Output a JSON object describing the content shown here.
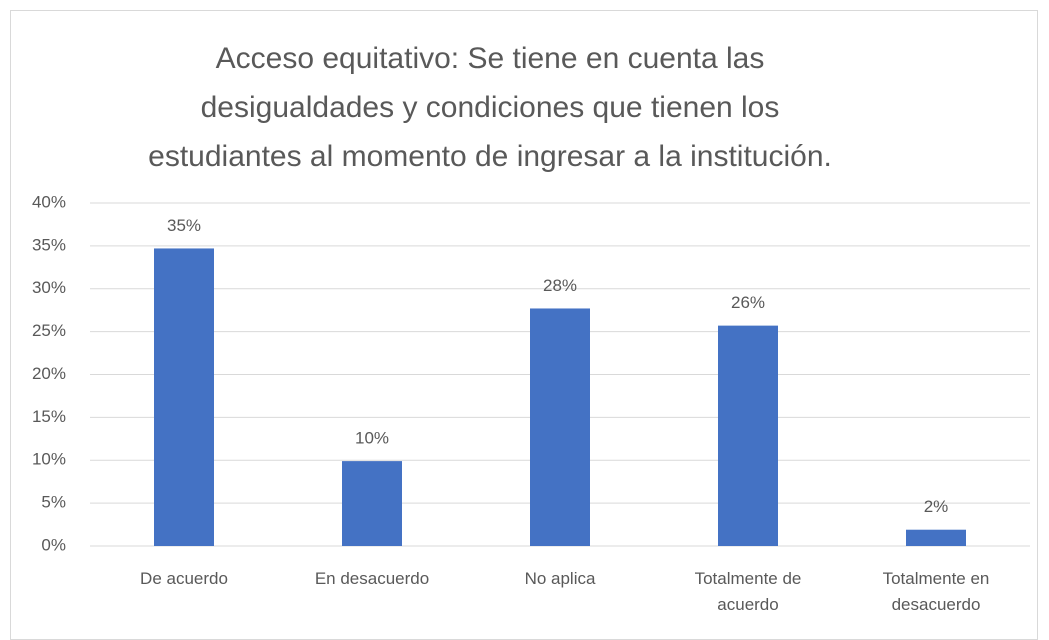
{
  "chart_data": {
    "type": "bar",
    "title": "Acceso equitativo: Se tiene en cuenta las desigualdades y condiciones que tienen los estudiantes al momento de ingresar a la institución.",
    "categories": [
      "De acuerdo",
      "En desacuerdo",
      "No aplica",
      "Totalmente de acuerdo",
      "Totalmente en desacuerdo"
    ],
    "values": [
      34.7,
      9.9,
      27.7,
      25.7,
      1.9
    ],
    "value_labels": [
      "35%",
      "10%",
      "28%",
      "26%",
      "2%"
    ],
    "color": "#4472c4",
    "ylim": [
      0,
      40
    ],
    "yticks": [
      {
        "value": 0,
        "label": "0%"
      },
      {
        "value": 5,
        "label": "5%"
      },
      {
        "value": 10,
        "label": "10%"
      },
      {
        "value": 15,
        "label": "15%"
      },
      {
        "value": 20,
        "label": "20%"
      },
      {
        "value": 25,
        "label": "25%"
      },
      {
        "value": 30,
        "label": "30%"
      },
      {
        "value": 35,
        "label": "35%"
      },
      {
        "value": 40,
        "label": "40%"
      }
    ],
    "grid": true
  }
}
